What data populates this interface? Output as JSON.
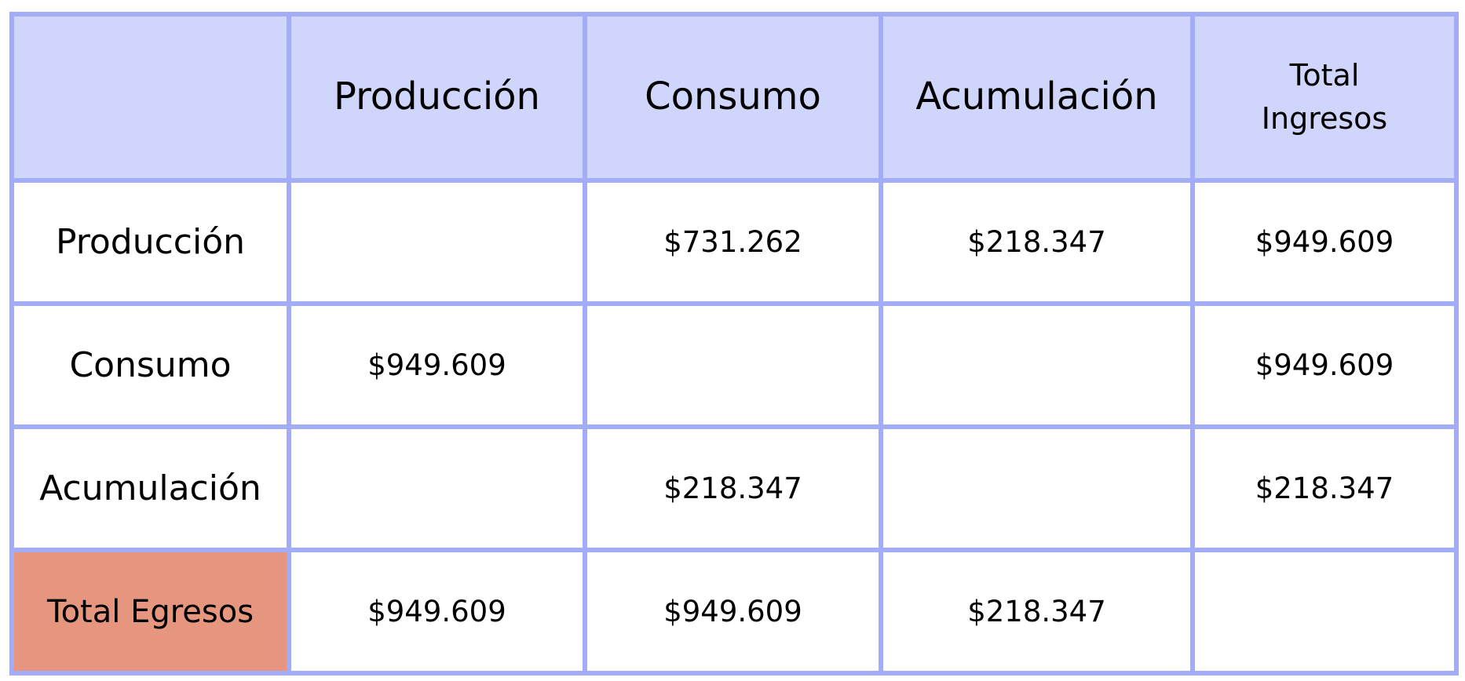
{
  "chart_data": {
    "type": "table",
    "columns": [
      "",
      "Producción",
      "Consumo",
      "Acumulación",
      "Total Ingresos"
    ],
    "total_column_label": "Total\nIngresos",
    "rows": [
      {
        "label": "Producción",
        "cells": [
          "",
          "$731.262",
          "$218.347",
          "$949.609"
        ]
      },
      {
        "label": "Consumo",
        "cells": [
          "$949.609",
          "",
          "",
          "$949.609"
        ]
      },
      {
        "label": "Acumulación",
        "cells": [
          "",
          "$218.347",
          "",
          "$218.347"
        ]
      },
      {
        "label": "Total Egresos",
        "cells": [
          "$949.609",
          "$949.609",
          "$218.347",
          ""
        ]
      }
    ],
    "colors": {
      "border": "#a3adf7",
      "header_background": "#cfd5fb",
      "total_label_background": "#e6957e",
      "cell_background": "#ffffff"
    }
  }
}
